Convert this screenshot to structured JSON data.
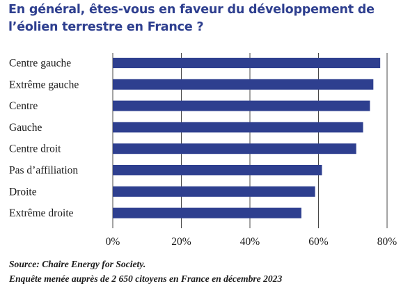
{
  "chart_data": {
    "type": "bar",
    "orientation": "horizontal",
    "title": "En général, êtes-vous en faveur du développement de l’éolien terrestre en France ?",
    "categories": [
      "Centre gauche",
      "Extrême gauche",
      "Centre",
      "Gauche",
      "Centre droit",
      "Pas d’affiliation",
      "Droite",
      "Extrême droite"
    ],
    "values": [
      78,
      76,
      75,
      73,
      71,
      61,
      59,
      55
    ],
    "unit": "%",
    "xlim": [
      0,
      80
    ],
    "xticks": [
      "0%",
      "20%",
      "40%",
      "60%",
      "80%"
    ],
    "xtick_values": [
      0,
      20,
      40,
      60,
      80
    ],
    "grid": "vertical",
    "colors": {
      "bar": "#2e3f8f",
      "grid": "#1a1a1a",
      "title": "#2e3f8f"
    }
  },
  "notes": {
    "source": "Source: Chaire Energy for Society.",
    "survey": "Enquête menée auprès de 2 650 citoyens en France en décembre 2023"
  }
}
